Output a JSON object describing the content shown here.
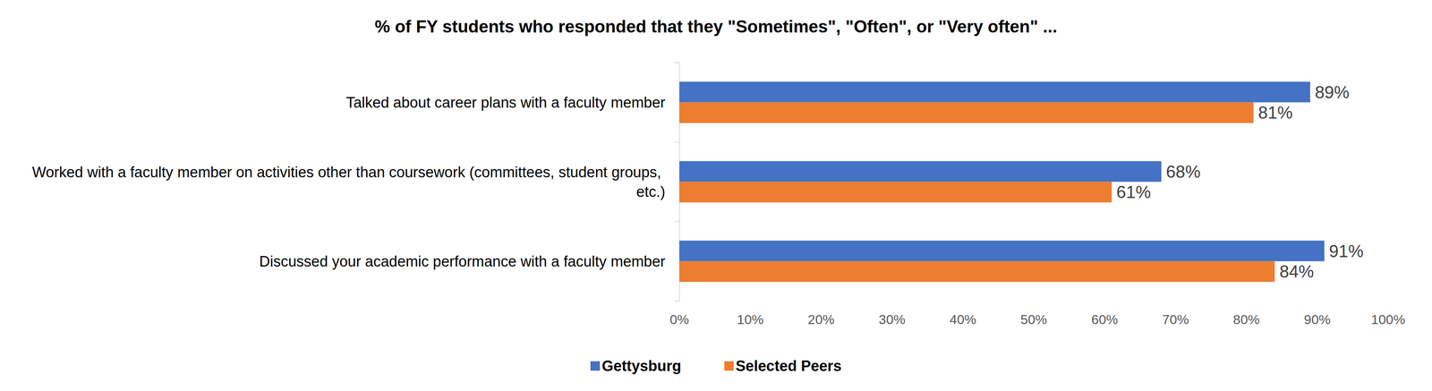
{
  "chart_data": {
    "type": "bar",
    "orientation": "horizontal",
    "title": "% of FY students who responded that they \"Sometimes\", \"Often\", or \"Very often\" ...",
    "categories": [
      "Talked about career plans with a faculty member",
      "Worked with a faculty member on activities other than coursework (committees, student groups, etc.)",
      "Discussed your academic performance with a faculty member"
    ],
    "series": [
      {
        "name": "Gettysburg",
        "color": "#4472c4",
        "values": [
          89,
          68,
          91
        ],
        "value_labels": [
          "89%",
          "68%",
          "91%"
        ]
      },
      {
        "name": "Selected Peers",
        "color": "#ed7d31",
        "values": [
          81,
          61,
          84
        ],
        "value_labels": [
          "81%",
          "61%",
          "84%"
        ]
      }
    ],
    "xlim": [
      0,
      100
    ],
    "xticks": [
      {
        "value": 0,
        "label": "0%"
      },
      {
        "value": 10,
        "label": "10%"
      },
      {
        "value": 20,
        "label": "20%"
      },
      {
        "value": 30,
        "label": "30%"
      },
      {
        "value": 40,
        "label": "40%"
      },
      {
        "value": 50,
        "label": "50%"
      },
      {
        "value": 60,
        "label": "60%"
      },
      {
        "value": 70,
        "label": "70%"
      },
      {
        "value": 80,
        "label": "80%"
      },
      {
        "value": 90,
        "label": "90%"
      },
      {
        "value": 100,
        "label": "100%"
      }
    ],
    "grid": false,
    "legend": "bottom",
    "data_labels": true
  }
}
